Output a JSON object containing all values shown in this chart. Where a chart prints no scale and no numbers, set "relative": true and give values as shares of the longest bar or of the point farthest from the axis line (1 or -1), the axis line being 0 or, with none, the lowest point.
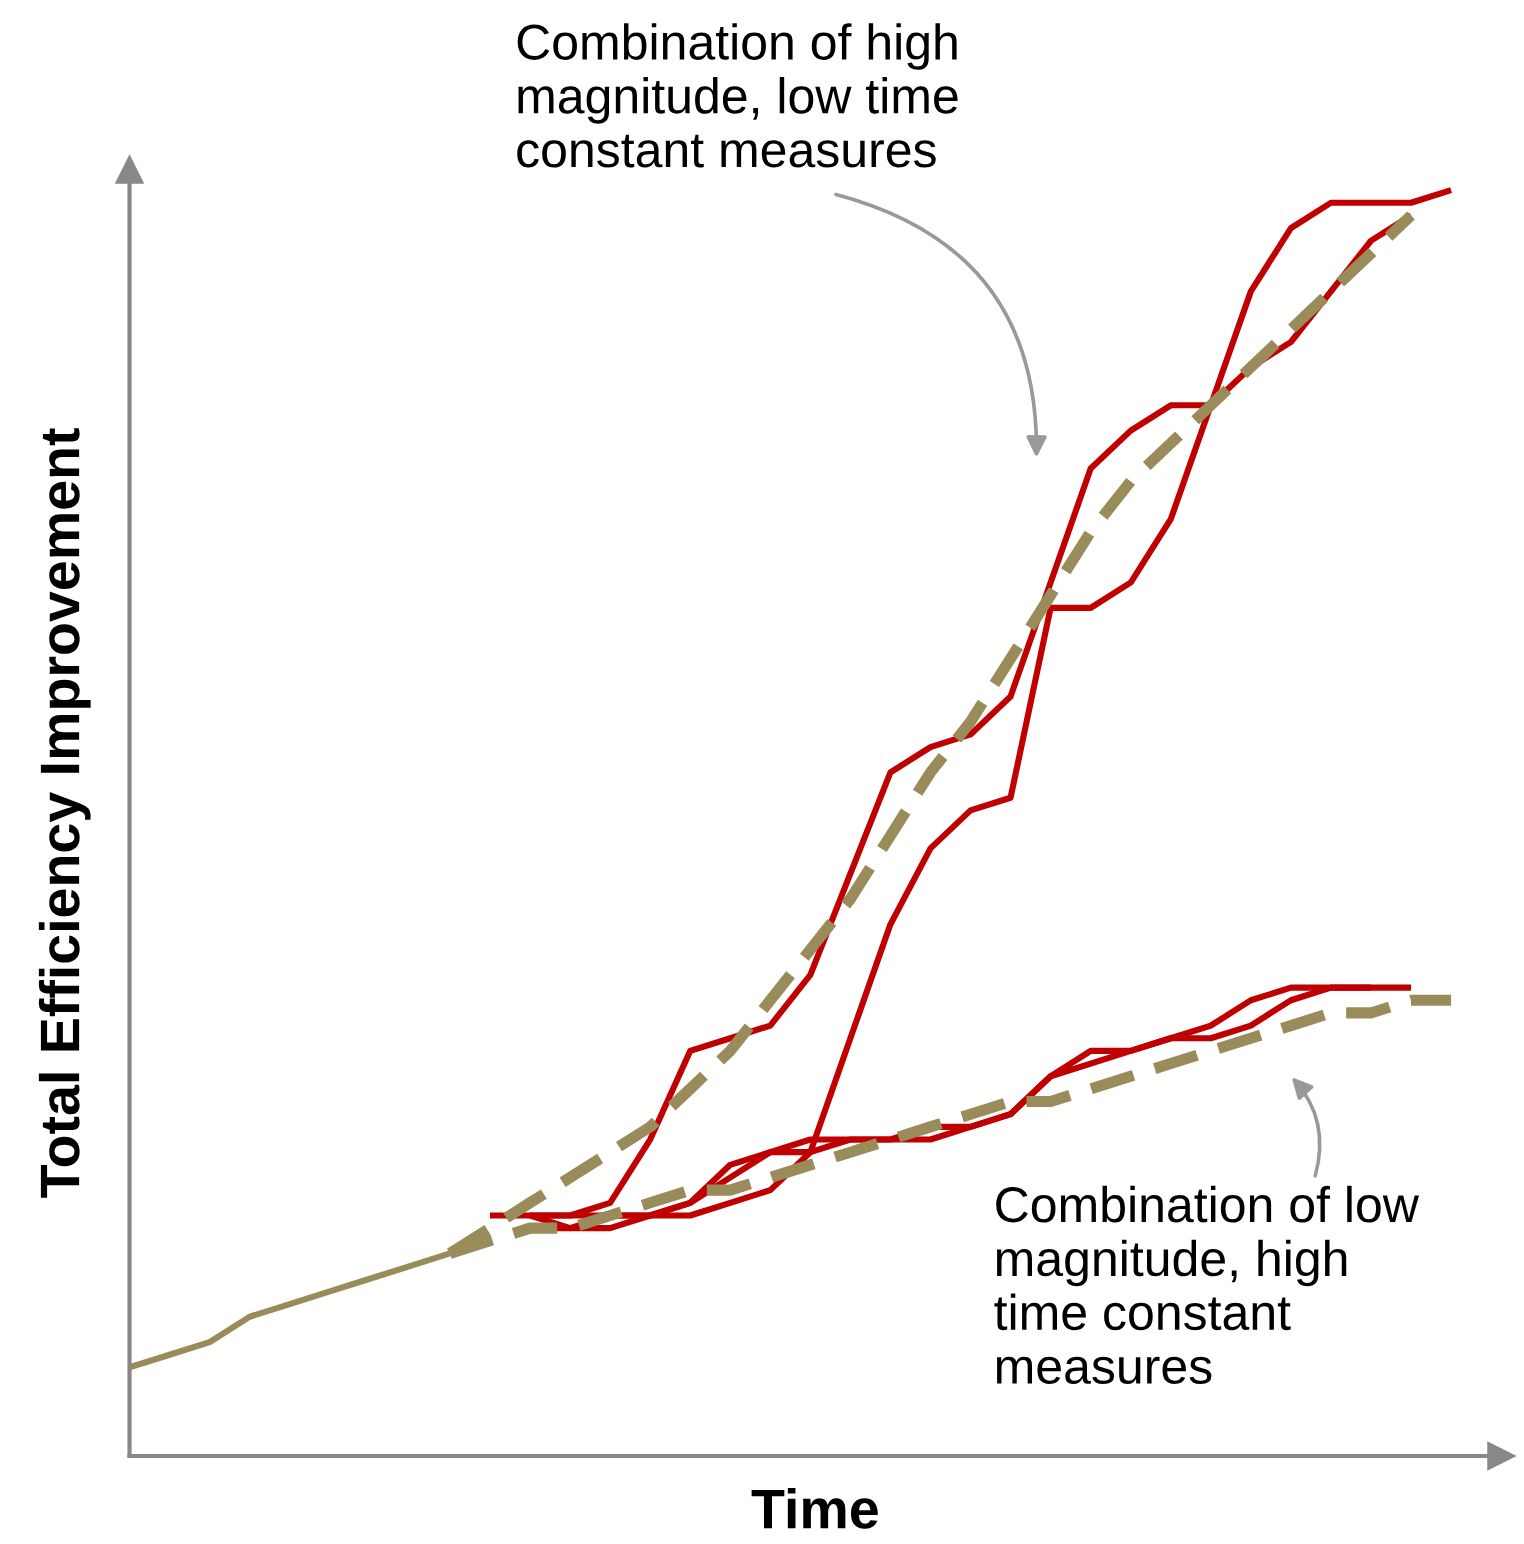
{
  "chart_data": {
    "type": "line",
    "relative": true,
    "xlabel": "Time",
    "ylabel": "Total Efficiency Improvement",
    "categories": [
      null,
      null,
      null,
      null,
      null,
      null,
      null,
      null,
      null,
      null,
      null,
      null,
      null,
      null,
      null,
      null,
      null,
      null,
      null,
      null,
      null,
      null,
      null,
      null,
      null,
      null,
      null,
      null,
      null,
      null,
      null,
      null,
      null,
      null
    ],
    "series": [
      {
        "color": "#9a8c5a",
        "line_style": "solid",
        "values": [
          0.07,
          0.08,
          0.09,
          0.11,
          0.12,
          0.13,
          0.14,
          0.15,
          0.16,
          null,
          null,
          null,
          null,
          null,
          null,
          null,
          null,
          null,
          null,
          null,
          null,
          null,
          null,
          null,
          null,
          null,
          null,
          null,
          null,
          null,
          null,
          null,
          null,
          null
        ]
      },
      {
        "color": "#c00000",
        "line_style": "solid",
        "values": [
          null,
          null,
          null,
          null,
          null,
          null,
          null,
          null,
          null,
          0.19,
          0.19,
          0.19,
          0.2,
          0.25,
          0.32,
          0.33,
          0.34,
          0.38,
          0.46,
          0.54,
          0.56,
          0.57,
          0.6,
          0.69,
          0.78,
          0.81,
          0.83,
          0.83,
          0.92,
          0.97,
          0.99,
          0.99,
          0.99,
          1.0
        ]
      },
      {
        "color": "#c00000",
        "line_style": "solid",
        "values": [
          null,
          null,
          null,
          null,
          null,
          null,
          null,
          null,
          null,
          null,
          0.19,
          0.18,
          0.18,
          0.19,
          0.19,
          0.2,
          0.21,
          0.24,
          0.33,
          0.42,
          0.48,
          0.51,
          0.52,
          0.67,
          0.67,
          0.69,
          0.74,
          0.83,
          0.86,
          0.88,
          0.92,
          0.96,
          0.98,
          null
        ]
      },
      {
        "color": "#c00000",
        "line_style": "solid",
        "values": [
          null,
          null,
          null,
          null,
          null,
          null,
          null,
          null,
          null,
          null,
          0.18,
          0.18,
          0.19,
          0.19,
          0.2,
          0.22,
          0.24,
          0.24,
          0.25,
          0.25,
          0.26,
          0.26,
          0.27,
          0.3,
          0.32,
          0.32,
          0.33,
          0.33,
          0.34,
          0.36,
          0.37,
          0.37,
          0.37,
          null
        ]
      },
      {
        "color": "#c00000",
        "line_style": "solid",
        "values": [
          null,
          null,
          null,
          null,
          null,
          null,
          null,
          null,
          null,
          null,
          0.19,
          0.19,
          0.19,
          0.19,
          0.2,
          0.23,
          0.24,
          0.25,
          0.25,
          0.25,
          0.25,
          0.26,
          0.27,
          0.3,
          0.31,
          0.32,
          0.33,
          0.34,
          0.36,
          0.37,
          0.37,
          0.37,
          null,
          null
        ]
      },
      {
        "color": "#9a8c5a",
        "line_style": "dashed",
        "values": [
          null,
          null,
          null,
          null,
          null,
          null,
          null,
          null,
          0.16,
          0.18,
          0.2,
          0.22,
          0.24,
          0.26,
          0.29,
          0.32,
          0.36,
          0.4,
          0.44,
          0.49,
          0.54,
          0.58,
          0.63,
          0.68,
          0.73,
          0.77,
          0.8,
          0.83,
          0.86,
          0.89,
          0.92,
          0.95,
          0.98,
          null
        ]
      },
      {
        "color": "#9a8c5a",
        "line_style": "dashed",
        "values": [
          null,
          null,
          null,
          null,
          null,
          null,
          null,
          null,
          0.16,
          0.17,
          0.18,
          0.18,
          0.19,
          0.2,
          0.21,
          0.21,
          0.22,
          0.23,
          0.24,
          0.25,
          0.26,
          0.27,
          0.28,
          0.28,
          0.29,
          0.3,
          0.31,
          0.32,
          0.33,
          0.34,
          0.35,
          0.35,
          0.36,
          0.36
        ]
      }
    ],
    "annotations": [
      "Combination of high\nmagnitude, low time\nconstant measures",
      "Combination of low\nmagnitude, high\ntime constant\nmeasures"
    ]
  }
}
